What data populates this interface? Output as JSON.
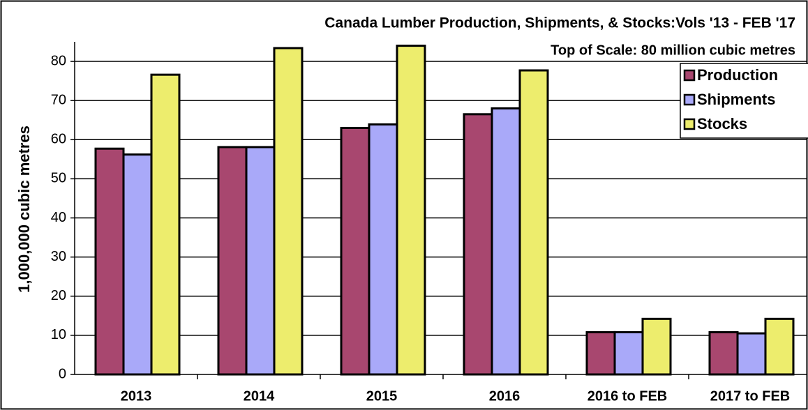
{
  "chart_data": {
    "type": "bar",
    "title": "Canada Lumber Production, Shipments, & Stocks:Vols '13 - FEB '17",
    "subtitle": "Top of Scale: 80 million cubic metres",
    "y_label": "1,000,000 cubic metres",
    "categories": [
      "2013",
      "2014",
      "2015",
      "2016",
      "2016 to FEB",
      "2017 to FEB"
    ],
    "series": [
      {
        "name": "Production",
        "color": "#a8476f",
        "values": [
          57.7,
          58.1,
          63,
          66.5,
          10.8,
          10.8
        ]
      },
      {
        "name": "Shipments",
        "color": "#a9a9f9",
        "values": [
          56.2,
          58.1,
          63.9,
          68,
          10.8,
          10.5
        ]
      },
      {
        "name": "Stocks",
        "color": "#eded6d",
        "values": [
          76.6,
          83.4,
          84,
          77.7,
          14.2,
          14.2
        ]
      }
    ],
    "ylim": [
      0,
      85
    ],
    "yticks": [
      0,
      10,
      20,
      30,
      40,
      50,
      60,
      70,
      80
    ],
    "grid": true,
    "legend": "upper right"
  }
}
